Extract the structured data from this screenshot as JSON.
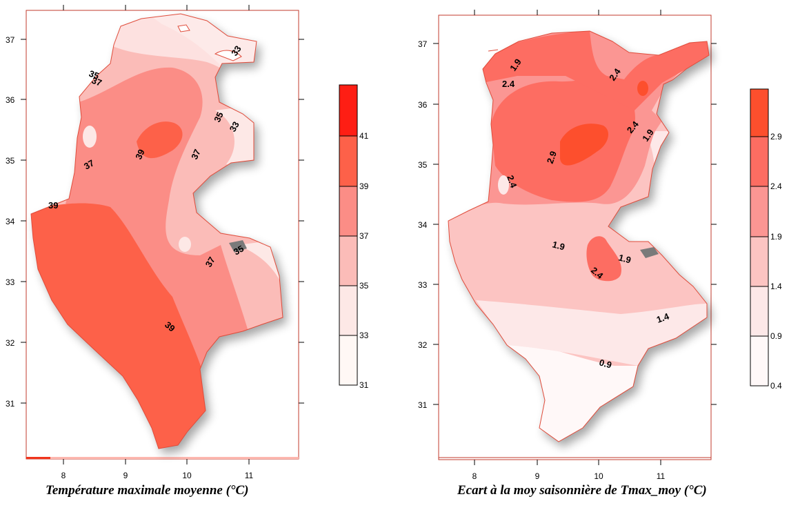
{
  "maps": [
    {
      "caption": "Température maximale moyenne (°C)",
      "x_ticks": [
        "8",
        "9",
        "10",
        "11"
      ],
      "y_ticks": [
        "37",
        "36",
        "35",
        "34",
        "33",
        "32",
        "31"
      ],
      "legend_levels": [
        "41",
        "39",
        "37",
        "35",
        "33",
        "31"
      ],
      "legend_colors": [
        "#fe1e14",
        "#fd6149",
        "#fb8d86",
        "#fbbcb8",
        "#fde8e6",
        "#fff8f5"
      ],
      "contour_labels": [
        "35",
        "37",
        "33",
        "35",
        "33",
        "39",
        "37",
        "37",
        "39",
        "35",
        "37",
        "39"
      ]
    },
    {
      "caption": "Ecart à la moy saisonnière de Tmax_moy (°C)",
      "x_ticks": [
        "8",
        "9",
        "10",
        "11"
      ],
      "y_ticks": [
        "37",
        "36",
        "35",
        "34",
        "33",
        "32",
        "31"
      ],
      "legend_levels": [
        "2.9",
        "2.4",
        "1.9",
        "1.4",
        "0.9",
        "0.4"
      ],
      "legend_colors": [
        "#fd4f2d",
        "#fd6d62",
        "#fb9693",
        "#fcc4c2",
        "#fde8e8",
        "#fff8f8"
      ],
      "contour_labels": [
        "1.9",
        "2.4",
        "2.4",
        "2.4",
        "1.9",
        "2.9",
        "2.4",
        "1.9",
        "1.9",
        "2.4",
        "1.4",
        "0.9"
      ]
    }
  ]
}
